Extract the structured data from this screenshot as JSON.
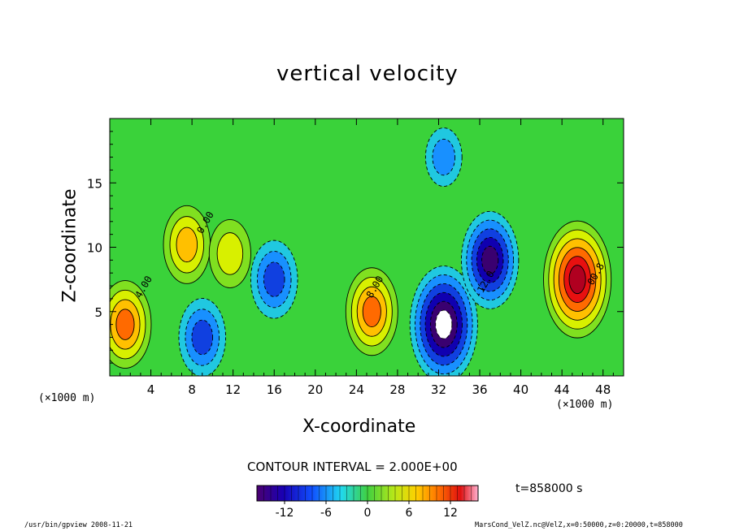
{
  "chart_data": {
    "type": "heatmap",
    "title": "vertical velocity",
    "xlabel": "X-coordinate",
    "ylabel": "Z-coordinate",
    "x_unit_label": "(×1000 m)",
    "xlim": [
      0,
      50
    ],
    "ylim": [
      0,
      20
    ],
    "x_ticks": [
      4,
      8,
      12,
      16,
      20,
      24,
      28,
      32,
      36,
      40,
      44,
      48
    ],
    "y_ticks": [
      5,
      10,
      15
    ],
    "contour_interval_label": "CONTOUR INTERVAL = 2.000E+00",
    "contour_labels": [
      "0.00",
      "4.00",
      "8.00",
      "-12.0",
      "00.8"
    ],
    "colorbar": {
      "range": [
        -16,
        16
      ],
      "ticks": [
        -12,
        -6,
        0,
        6,
        12
      ]
    },
    "features": [
      {
        "x": 1.5,
        "z": 4.0,
        "value": 10,
        "sign": "up"
      },
      {
        "x": 7.5,
        "z": 10.2,
        "value": 8,
        "sign": "up"
      },
      {
        "x": 11.7,
        "z": 9.5,
        "value": 6,
        "sign": "up"
      },
      {
        "x": 25.5,
        "z": 5.0,
        "value": 10,
        "sign": "up"
      },
      {
        "x": 45.5,
        "z": 7.5,
        "value": 16,
        "sign": "up"
      },
      {
        "x": 9.0,
        "z": 3.0,
        "value": -8,
        "sign": "down"
      },
      {
        "x": 16.0,
        "z": 7.5,
        "value": -8,
        "sign": "down"
      },
      {
        "x": 32.5,
        "z": 4.0,
        "value": -16,
        "sign": "down"
      },
      {
        "x": 37.0,
        "z": 9.0,
        "value": -12,
        "sign": "down"
      },
      {
        "x": 32.5,
        "z": 17.0,
        "value": -4,
        "sign": "down"
      }
    ]
  },
  "labels": {
    "time": "t=858000 s",
    "footer_left": "/usr/bin/gpview   2008-11-21",
    "footer_right": "MarsCond_VelZ.nc@VelZ,x=0:50000,z=0:20000,t=858000"
  }
}
